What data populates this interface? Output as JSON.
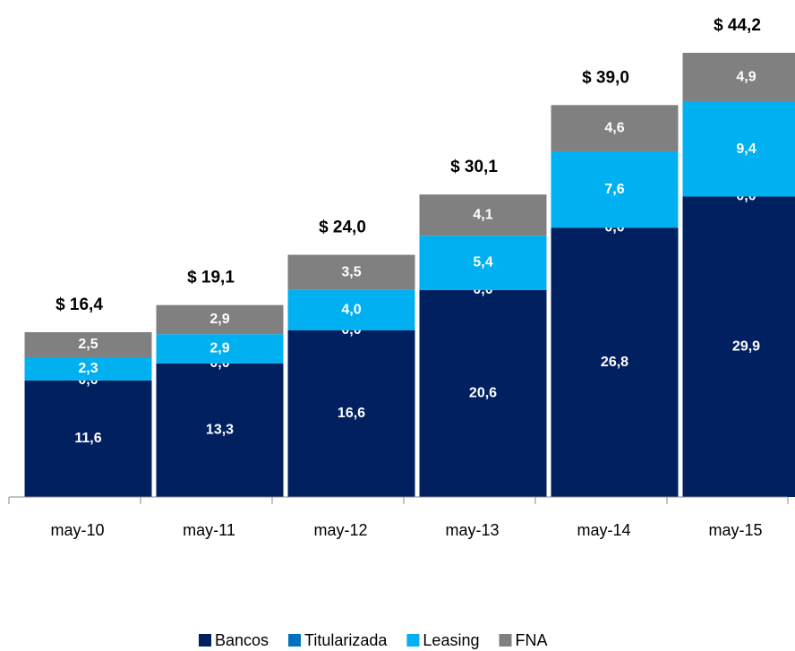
{
  "chart_data": {
    "type": "stacked_bar",
    "categories": [
      "may-10",
      "may-11",
      "may-12",
      "may-13",
      "may-14",
      "may-15"
    ],
    "series": [
      {
        "name": "Bancos",
        "color": "#002060",
        "values": [
          11.6,
          13.3,
          16.6,
          20.6,
          26.8,
          29.9
        ],
        "value_labels": [
          "11,6",
          "13,3",
          "16,6",
          "20,6",
          "26,8",
          "29,9"
        ]
      },
      {
        "name": "Titularizada",
        "color": "#0070c0",
        "values": [
          0,
          0,
          0,
          0,
          0,
          0
        ],
        "value_labels": [
          "0,0",
          "0,0",
          "0,0",
          "0,0",
          "0,0",
          "0,0"
        ]
      },
      {
        "name": "Leasing",
        "color": "#00b0f0",
        "values": [
          2.3,
          2.9,
          4.0,
          5.4,
          7.6,
          9.4
        ],
        "value_labels": [
          "2,3",
          "2,9",
          "4,0",
          "5,4",
          "7,6",
          "9,4"
        ]
      },
      {
        "name": "FNA",
        "color": "#808080",
        "values": [
          2.5,
          2.9,
          3.5,
          4.1,
          4.6,
          4.9
        ],
        "value_labels": [
          "2,5",
          "2,9",
          "3,5",
          "4,1",
          "4,6",
          "4,9"
        ]
      }
    ],
    "total_labels": [
      "$ 16,4",
      "$ 19,1",
      "$ 24,0",
      "$ 30,1",
      "$ 39,0",
      "$ 44,2"
    ],
    "ylim": [
      0,
      45
    ],
    "legend": "bottom"
  }
}
